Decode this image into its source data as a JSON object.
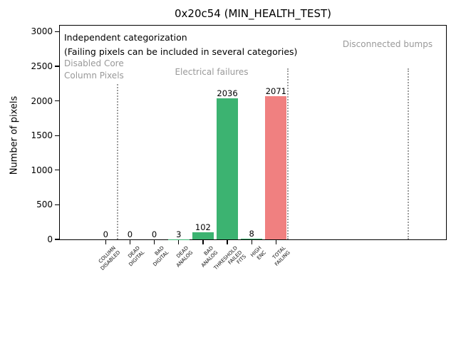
{
  "chart_data": {
    "type": "bar",
    "title": "0x20c54 (MIN_HEALTH_TEST)",
    "ylabel": "Number of pixels",
    "xlabel": "",
    "ylim": [
      0,
      3100
    ],
    "yticks": [
      0,
      500,
      1000,
      1500,
      2000,
      2500,
      3000
    ],
    "grid": false,
    "legend": "none",
    "categories": [
      "COLUMN\nDISABLED",
      "DEAD\nDIGITAL",
      "BAD\nDIGITAL",
      "DEAD\nANALOG",
      "BAD\nANALOG",
      "THRESHOLD\nFAILED\nFITS",
      "HIGH\nENC",
      "TOTAL\nFAILING"
    ],
    "values": [
      0,
      0,
      0,
      3,
      102,
      2036,
      8,
      2071
    ],
    "bar_colors": [
      "#3cb371",
      "#3cb371",
      "#3cb371",
      "#3cb371",
      "#3cb371",
      "#3cb371",
      "#3cb371",
      "#f08080"
    ],
    "annotations": [
      "Independent categorization",
      "(Failing pixels can be included in several categories)"
    ],
    "section_labels": [
      "Disabled Core\nColumn Pixels",
      "Electrical failures",
      "Disconnected bumps"
    ],
    "separators_category_x": [
      0.5,
      7.5,
      12.43
    ]
  },
  "colors": {
    "bar_green": "#3cb371",
    "bar_red": "#f08080",
    "section_text": "#999999",
    "separator_dotted": "#9e9e9e"
  }
}
